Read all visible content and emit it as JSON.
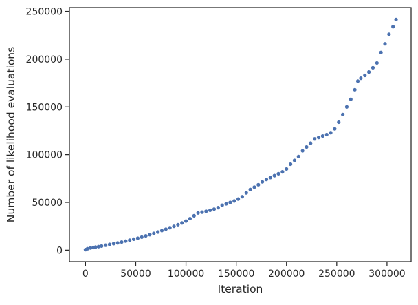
{
  "chart_data": {
    "type": "scatter",
    "title": "",
    "xlabel": "Iteration",
    "ylabel": "Number of likelihood evaluations",
    "xlim": [
      -16000,
      324000
    ],
    "ylim": [
      -12000,
      254000
    ],
    "xticks": [
      0,
      50000,
      100000,
      150000,
      200000,
      250000,
      300000
    ],
    "yticks": [
      0,
      50000,
      100000,
      150000,
      200000,
      250000
    ],
    "xtick_labels": [
      "0",
      "50000",
      "100000",
      "150000",
      "200000",
      "250000",
      "300000"
    ],
    "ytick_labels": [
      "0",
      "50000",
      "100000",
      "150000",
      "200000",
      "250000"
    ],
    "grid": false,
    "legend": "none",
    "marker_color": "#4c72b0",
    "series": [
      {
        "x": [
          0,
          2000,
          5000,
          8000,
          10000,
          13000,
          16000,
          20000,
          24000,
          28000,
          32000,
          36000,
          40000,
          44000,
          48000,
          52000,
          56000,
          60000,
          64000,
          68000,
          72000,
          76000,
          80000,
          84000,
          88000,
          92000,
          96000,
          100000,
          104000,
          108000,
          112000,
          116000,
          120000,
          124000,
          128000,
          132000,
          136000,
          140000,
          144000,
          148000,
          152000,
          156000,
          160000,
          164000,
          168000,
          172000,
          176000,
          180000,
          184000,
          188000,
          192000,
          196000,
          200000,
          204000,
          208000,
          212000,
          216000,
          220000,
          224000,
          228000,
          232000,
          236000,
          240000,
          244000,
          248000,
          252000,
          256000,
          260000,
          264000,
          268000,
          271000,
          274000,
          278000,
          282000,
          286000,
          290000,
          294000,
          298000,
          302000,
          306000,
          309000
        ],
        "y": [
          500,
          1500,
          2300,
          2800,
          3200,
          3700,
          4300,
          5200,
          6000,
          6800,
          7600,
          8500,
          9500,
          10500,
          11500,
          12500,
          13700,
          15000,
          16300,
          17600,
          19000,
          20500,
          22000,
          23500,
          25000,
          26700,
          28500,
          30500,
          33000,
          36000,
          39000,
          39800,
          40700,
          41800,
          43000,
          44500,
          47000,
          48500,
          50000,
          51500,
          53500,
          56000,
          60000,
          63500,
          66000,
          68500,
          71500,
          74000,
          76000,
          78000,
          80000,
          82000,
          85000,
          90000,
          94000,
          98000,
          104000,
          108000,
          112000,
          116500,
          118000,
          119500,
          121000,
          123000,
          127000,
          134000,
          142000,
          150000,
          158000,
          168000,
          177000,
          180000,
          183000,
          186500,
          191000,
          196000,
          207000,
          216000,
          226000,
          234000,
          241500
        ]
      }
    ]
  }
}
